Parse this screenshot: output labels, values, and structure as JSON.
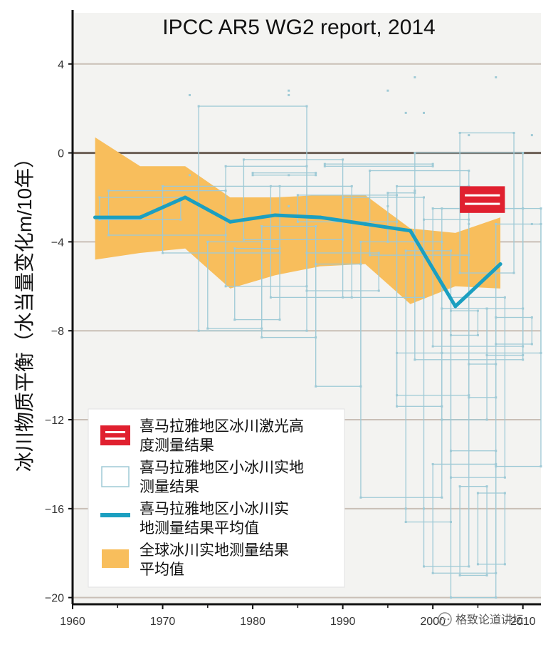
{
  "chart_data": {
    "type": "line",
    "title": "IPCC AR5 WG2 report, 2014",
    "ylabel": "冰川物质平衡（水当量变化m/10年）",
    "xlabel": "",
    "xlim": [
      1960,
      2012
    ],
    "ylim": [
      -20.3,
      6.3
    ],
    "x_ticks": [
      1960,
      1970,
      1980,
      1990,
      2000,
      2010
    ],
    "x_tick_labels": [
      "1960",
      "1970",
      "1980",
      "1990",
      "2000",
      "2010"
    ],
    "y_ticks": [
      4,
      0,
      -4,
      -8,
      -12,
      -16,
      -20
    ],
    "y_tick_labels": [
      "4",
      "0",
      "−4",
      "−8",
      "−12",
      "−16",
      "−20"
    ],
    "reference_line": 0,
    "grid": "horizontal",
    "colors": {
      "background": "#f3f3f1",
      "grid": "#c9bfb6",
      "zero_line": "#6b5e55",
      "laser": "#e0202f",
      "field": "#9fcad6",
      "mean_line": "#1b9fc0",
      "global_band": "#f8be5c"
    },
    "series": [
      {
        "name": "喜马拉雅地区小冰川实地测量结果平均值",
        "kind": "line",
        "x": [
          1962.5,
          1967.5,
          1972.5,
          1977.5,
          1982.5,
          1987.5,
          1992.5,
          1997.5,
          2002.5,
          2007.5
        ],
        "y": [
          -2.9,
          -2.9,
          -2.0,
          -3.1,
          -2.8,
          -2.9,
          -3.2,
          -3.5,
          -6.9,
          -5.0
        ]
      },
      {
        "name": "全球冰川实地测量结果平均值",
        "kind": "band",
        "x": [
          1962.5,
          1967.5,
          1972.5,
          1977.5,
          1982.5,
          1987.5,
          1992.5,
          1997.5,
          2002.5,
          2007.5
        ],
        "upper": [
          0.7,
          -0.6,
          -0.6,
          -2.0,
          -2.0,
          -1.9,
          -1.9,
          -3.4,
          -3.6,
          -2.9
        ],
        "lower": [
          -4.8,
          -4.5,
          -4.3,
          -6.1,
          -5.5,
          -5.1,
          -5.0,
          -6.8,
          -6.0,
          -6.1
        ]
      },
      {
        "name": "喜马拉雅地区冰川激光高度测量结果",
        "kind": "laser_box",
        "x0": 2003,
        "x1": 2008,
        "y0": -2.7,
        "y1": -1.5
      },
      {
        "name": "喜马拉雅地区小冰川实地测量结果",
        "kind": "rectangles",
        "boxes": [
          [
            1963,
            1972,
            -3.0,
            -2.0
          ],
          [
            1964,
            1977,
            -3.7,
            -1.7
          ],
          [
            1970,
            1983,
            -4.5,
            -1.5
          ],
          [
            1973,
            1984,
            2.6,
            -1.0
          ],
          [
            1974,
            1986,
            -8.0,
            2.1
          ],
          [
            1975,
            1981,
            -7.9,
            -4.0
          ],
          [
            1977,
            1986,
            -6.0,
            -0.6
          ],
          [
            1978,
            1983,
            -7.5,
            -4.3
          ],
          [
            1979,
            1990,
            -3.9,
            -0.3
          ],
          [
            1980,
            1987,
            -1.0,
            -0.9
          ],
          [
            1981,
            1987,
            -8.3,
            -3.3
          ],
          [
            1982,
            1991,
            -6.5,
            -1.5
          ],
          [
            1984,
            1995,
            2.8,
            -2.4
          ],
          [
            1985,
            1996,
            -3.1,
            -1.9
          ],
          [
            1986,
            1994,
            -6.2,
            -4.5
          ],
          [
            1987,
            1992,
            -10.5,
            -5.0
          ],
          [
            1988,
            2000,
            -0.6,
            -0.5
          ],
          [
            1990,
            1999,
            -6.5,
            -2.0
          ],
          [
            1992,
            2001,
            -15.5,
            -4.0
          ],
          [
            1993,
            2004,
            -4.6,
            -0.8
          ],
          [
            1996,
            2004,
            -10.9,
            -1.5
          ],
          [
            1996,
            2001,
            -11.4,
            -9.0
          ],
          [
            1997,
            2002,
            -16.6,
            -4.4
          ],
          [
            1997,
            1999,
            1.8,
            -16.0
          ],
          [
            1998,
            2007,
            3.4,
            -1.7
          ],
          [
            1998,
            2010,
            -9.3,
            0.0
          ],
          [
            1999,
            2004,
            -18.6,
            -3.0
          ],
          [
            2000,
            2007,
            -18.9,
            -14.0
          ],
          [
            2000,
            2010,
            -8.7,
            -2.5
          ],
          [
            2001,
            2006,
            -12.0,
            -7.0
          ],
          [
            2002,
            2008,
            -14.6,
            -6.5
          ],
          [
            2002,
            2007,
            -20.0,
            -13.4
          ],
          [
            2003,
            2009,
            -5.4,
            0.9
          ],
          [
            2003,
            2006,
            -19.0,
            -15.0
          ],
          [
            2004,
            2011,
            0.8,
            -3.2
          ],
          [
            2004,
            2007,
            -11.0,
            -9.5
          ],
          [
            2005,
            2008,
            -18.5,
            -15.3
          ],
          [
            2006,
            2010,
            -9.1,
            -7.0
          ],
          [
            2007,
            2011,
            -8.6,
            -7.4
          ],
          [
            2007,
            2012,
            -14.1,
            -3.2
          ],
          [
            2001,
            2012,
            -9.0,
            -2.5
          ],
          [
            1995,
            1998,
            -4.0,
            -1.8
          ],
          [
            2002,
            2005,
            -8.2,
            -7.1
          ]
        ]
      }
    ],
    "legend": {
      "placement": "bottom-left",
      "items": [
        {
          "label_lines": [
            "喜马拉雅地区冰川激光高",
            "度测量结果"
          ],
          "symbol": "laser"
        },
        {
          "label_lines": [
            "喜马拉雅地区小冰川实地",
            "测量结果"
          ],
          "symbol": "field"
        },
        {
          "label_lines": [
            "喜马拉雅地区小冰川实",
            "地测量结果平均值"
          ],
          "symbol": "line"
        },
        {
          "label_lines": [
            "全球冰川实地测量结果",
            "平均值"
          ],
          "symbol": "band"
        }
      ]
    }
  },
  "watermark": "格致论道讲坛"
}
